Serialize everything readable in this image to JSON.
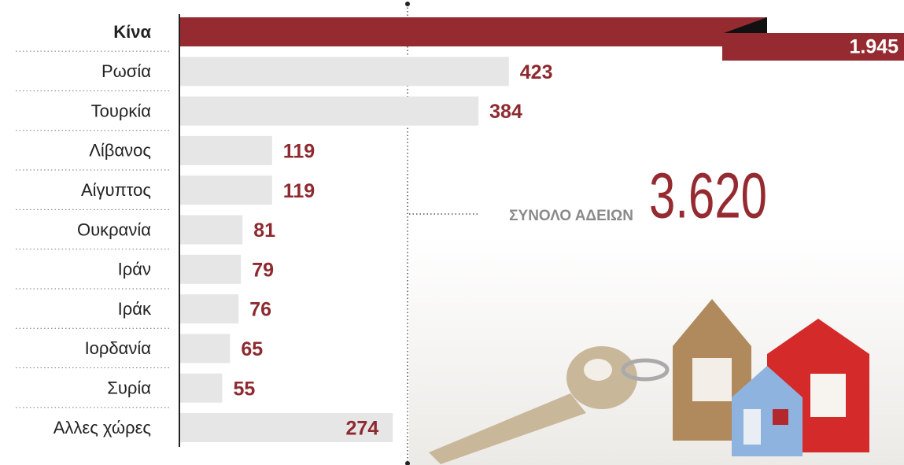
{
  "chart_data": {
    "type": "bar",
    "categories": [
      "Κίνα",
      "Ρωσία",
      "Τουρκία",
      "Λίβανος",
      "Αίγυπτος",
      "Ουκρανία",
      "Ιράν",
      "Ιράκ",
      "Ιορδανία",
      "Συρία",
      "Αλλες χώρες"
    ],
    "values": [
      1945,
      423,
      384,
      119,
      119,
      81,
      79,
      76,
      65,
      55,
      274
    ],
    "value_labels": [
      "1.945",
      "423",
      "384",
      "119",
      "119",
      "81",
      "79",
      "76",
      "65",
      "55",
      "274"
    ],
    "colors": {
      "highlight": "#952b31",
      "bar": "#e6e6e6",
      "label": "#8e2a2f"
    },
    "total_title": "ΣΥΝΟΛΟ ΑΔΕΙΩΝ",
    "total_value": "3.620"
  }
}
